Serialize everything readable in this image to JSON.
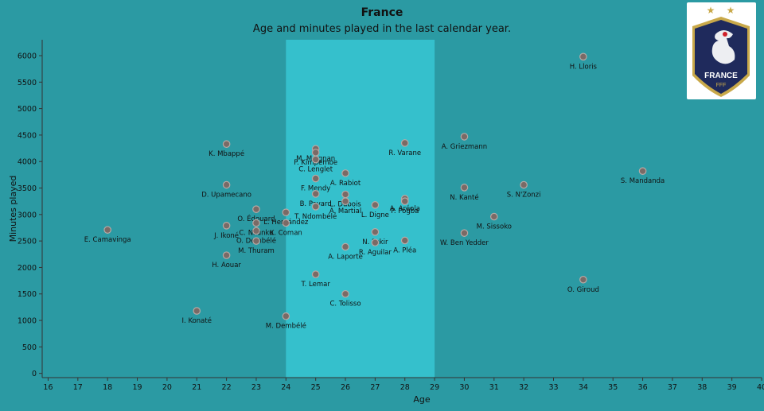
{
  "title": "France",
  "subtitle": "Age and minutes played in the last calendar year.",
  "logo": {
    "brand_text": "FRANCE",
    "sub_text": "FFF"
  },
  "colors": {
    "background": "#2b9aa3",
    "highlight_band": "#35c0cc",
    "point": "#7a6a66",
    "point_stroke": "#b7aaa6"
  },
  "chart_data": {
    "type": "scatter",
    "xlabel": "Age",
    "ylabel": "Minutes played",
    "xlim": [
      15.8,
      40
    ],
    "ylim": [
      -80,
      6300
    ],
    "xticks": [
      16,
      17,
      18,
      19,
      20,
      21,
      22,
      23,
      24,
      25,
      26,
      27,
      28,
      29,
      30,
      31,
      32,
      33,
      34,
      35,
      36,
      37,
      38,
      39,
      40
    ],
    "yticks": [
      0,
      500,
      1000,
      1500,
      2000,
      2500,
      3000,
      3500,
      4000,
      4500,
      5000,
      5500,
      6000
    ],
    "highlight_band": [
      24,
      29
    ],
    "grid": false,
    "points": [
      {
        "label": "H. Lloris",
        "x": 34,
        "y": 5980
      },
      {
        "label": "A. Griezmann",
        "x": 30,
        "y": 4470
      },
      {
        "label": "R. Varane",
        "x": 28,
        "y": 4350
      },
      {
        "label": "K. Mbappé",
        "x": 22,
        "y": 4330
      },
      {
        "label": "M. Maignan",
        "x": 25,
        "y": 4240
      },
      {
        "label": "P. Kimpembe",
        "x": 25,
        "y": 4170
      },
      {
        "label": "C. Lenglet",
        "x": 25,
        "y": 4040
      },
      {
        "label": "S. Mandanda",
        "x": 36,
        "y": 3820
      },
      {
        "label": "A. Rabiot",
        "x": 26,
        "y": 3780
      },
      {
        "label": "F. Mendy",
        "x": 25,
        "y": 3680
      },
      {
        "label": "D. Upamecano",
        "x": 22,
        "y": 3560
      },
      {
        "label": "S. N'Zonzi",
        "x": 32,
        "y": 3560
      },
      {
        "label": "N. Kanté",
        "x": 30,
        "y": 3510
      },
      {
        "label": "B. Pavard",
        "x": 25,
        "y": 3390
      },
      {
        "label": "L. Dubois",
        "x": 26,
        "y": 3380
      },
      {
        "label": "A. Aréola",
        "x": 28,
        "y": 3300
      },
      {
        "label": "P. Pogba",
        "x": 28,
        "y": 3250
      },
      {
        "label": "A. Martial",
        "x": 26,
        "y": 3250
      },
      {
        "label": "L. Digne",
        "x": 27,
        "y": 3180
      },
      {
        "label": "T. Ndombélé",
        "x": 25,
        "y": 3150
      },
      {
        "label": "O. Édouard",
        "x": 23,
        "y": 3100
      },
      {
        "label": "L. Hernández",
        "x": 24,
        "y": 3040
      },
      {
        "label": "M. Sissoko",
        "x": 31,
        "y": 2960
      },
      {
        "label": "C. Nkunku",
        "x": 23,
        "y": 2840
      },
      {
        "label": "K. Coman",
        "x": 24,
        "y": 2840
      },
      {
        "label": "J. Ikoné",
        "x": 22,
        "y": 2790
      },
      {
        "label": "E. Camavinga",
        "x": 18,
        "y": 2710
      },
      {
        "label": "O. Dembélé",
        "x": 23,
        "y": 2690
      },
      {
        "label": "N. Fekir",
        "x": 27,
        "y": 2670
      },
      {
        "label": "W. Ben Yedder",
        "x": 30,
        "y": 2650
      },
      {
        "label": "A. Pléa",
        "x": 28,
        "y": 2510
      },
      {
        "label": "M. Thuram",
        "x": 23,
        "y": 2500
      },
      {
        "label": "R. Aguilar",
        "x": 27,
        "y": 2470
      },
      {
        "label": "A. Laporte",
        "x": 26,
        "y": 2390
      },
      {
        "label": "H. Aouar",
        "x": 22,
        "y": 2230
      },
      {
        "label": "T. Lemar",
        "x": 25,
        "y": 1870
      },
      {
        "label": "O. Giroud",
        "x": 34,
        "y": 1770
      },
      {
        "label": "C. Tolisso",
        "x": 26,
        "y": 1500
      },
      {
        "label": "I. Konaté",
        "x": 21,
        "y": 1180
      },
      {
        "label": "M. Dembélé",
        "x": 24,
        "y": 1080
      }
    ]
  }
}
